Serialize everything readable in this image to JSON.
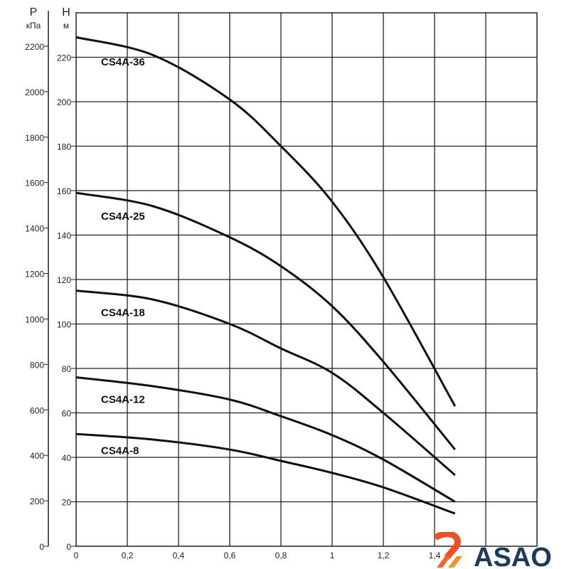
{
  "chart_data": {
    "type": "line",
    "title": "",
    "y_left_outer": {
      "label": "P",
      "unit": "кПа",
      "ticks": [
        "0",
        "200",
        "400",
        "600",
        "800",
        "1000",
        "1200",
        "1400",
        "1600",
        "1800",
        "2000",
        "2200"
      ]
    },
    "y_left_inner": {
      "label": "H",
      "unit": "м",
      "ticks": [
        "0",
        "20",
        "40",
        "60",
        "80",
        "100",
        "120",
        "140",
        "160",
        "180",
        "200",
        "220"
      ],
      "ylim": [
        0,
        240
      ]
    },
    "x": {
      "ticks": [
        "0",
        "0,2",
        "0,4",
        "0,6",
        "0,8",
        "1",
        "1,2",
        "1,4"
      ],
      "xlim": [
        0,
        1.8
      ]
    },
    "grid": true,
    "series": [
      {
        "name": "CS4A-36",
        "q": [
          0,
          0.3,
          0.6,
          0.8,
          1.0,
          1.2,
          1.48
        ],
        "h": [
          229,
          221,
          201,
          180,
          155,
          121,
          63
        ]
      },
      {
        "name": "CS4A-25",
        "q": [
          0,
          0.3,
          0.6,
          0.8,
          1.0,
          1.2,
          1.48
        ],
        "h": [
          159,
          153,
          139,
          126,
          108,
          83,
          43.5
        ]
      },
      {
        "name": "CS4A-18",
        "q": [
          0,
          0.3,
          0.6,
          0.8,
          1.0,
          1.2,
          1.48
        ],
        "h": [
          115,
          111,
          100,
          89,
          78,
          60,
          32
        ]
      },
      {
        "name": "CS4A-12",
        "q": [
          0,
          0.3,
          0.6,
          0.8,
          1.0,
          1.2,
          1.48
        ],
        "h": [
          76,
          72,
          66,
          58.5,
          50,
          39,
          20
        ]
      },
      {
        "name": "CS4A-8",
        "q": [
          0,
          0.3,
          0.6,
          0.8,
          1.0,
          1.2,
          1.48
        ],
        "h": [
          50.5,
          48,
          43.5,
          38.4,
          33,
          26.5,
          14.7
        ]
      }
    ],
    "line_color": "#111111"
  },
  "watermark": {
    "text": "ASAO",
    "colors": [
      "#f04e23",
      "#f7941d",
      "#1c3a5e"
    ]
  }
}
